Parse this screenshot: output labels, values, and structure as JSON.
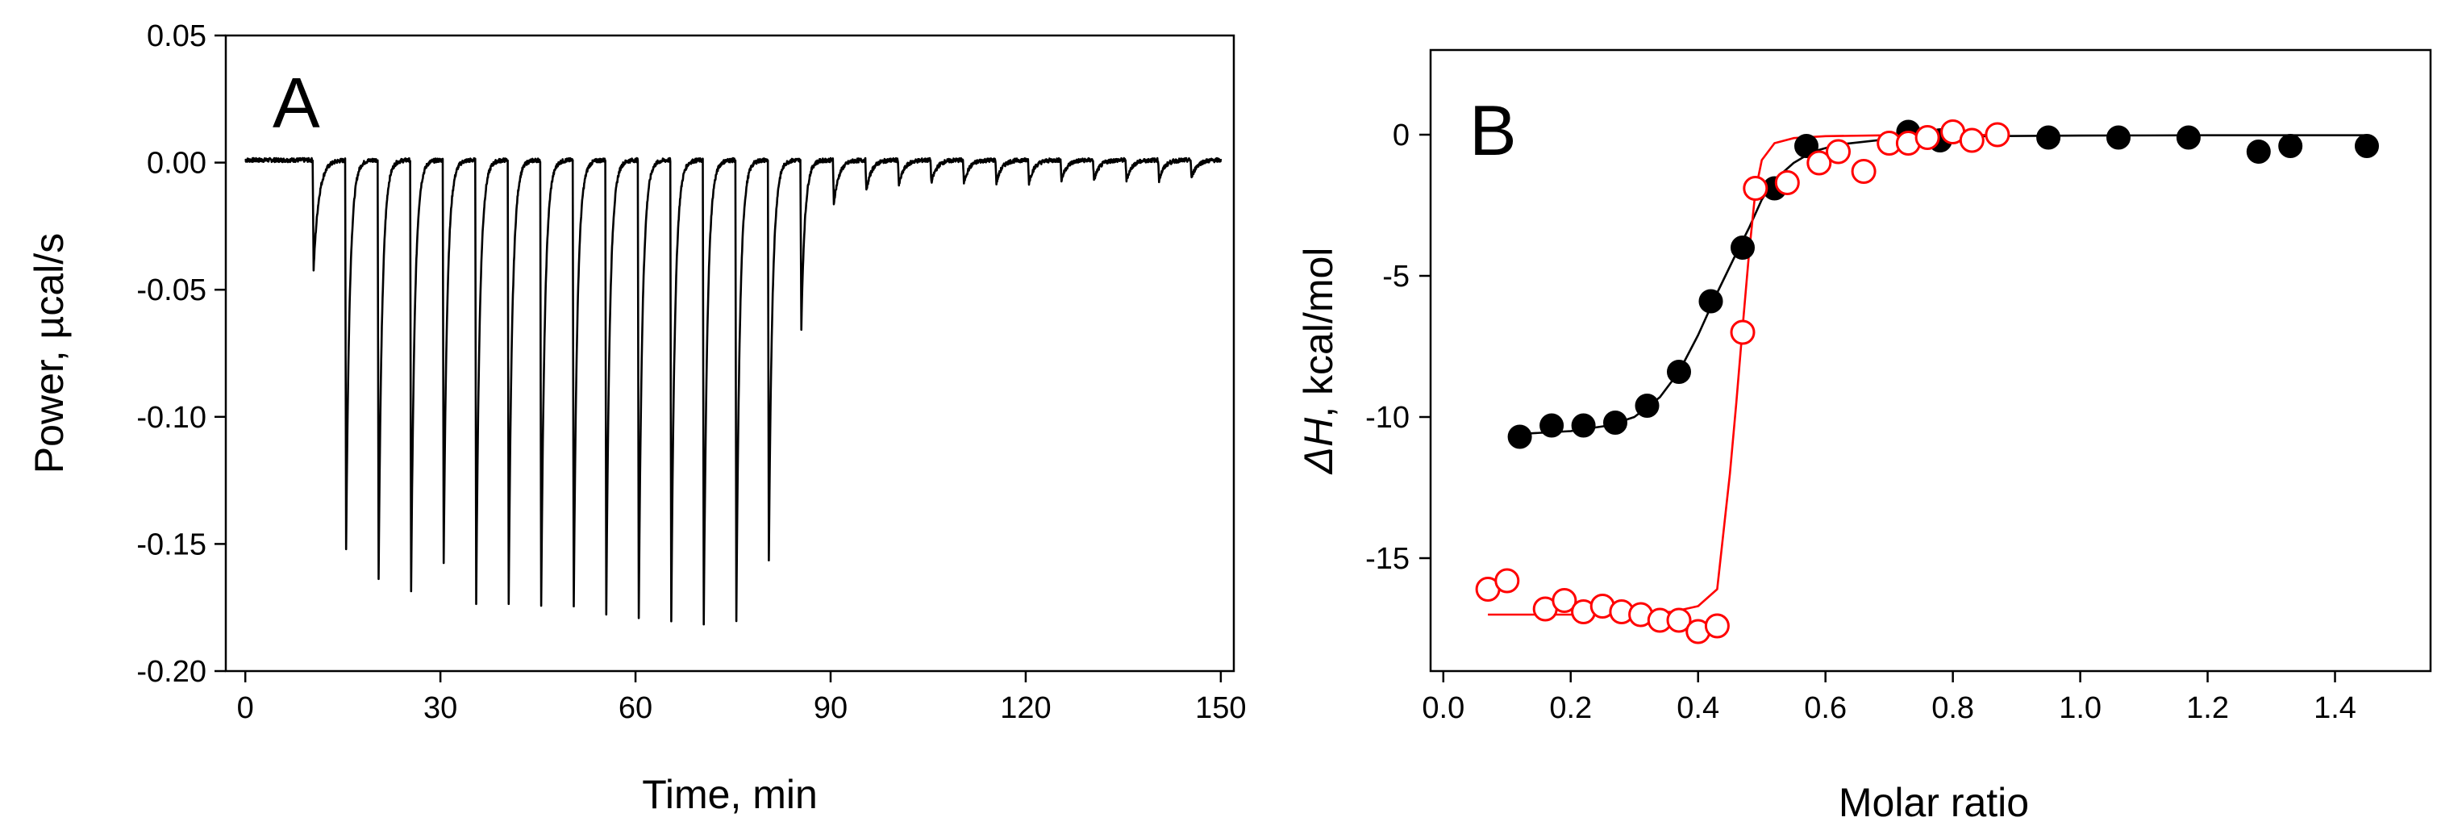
{
  "chart_data": [
    {
      "type": "line",
      "panel_label": "A",
      "title": "",
      "xlabel": "Time, min",
      "ylabel": "Power, µcal/s",
      "xlim": [
        -3,
        152
      ],
      "ylim": [
        -0.2,
        0.05
      ],
      "xticks": [
        0,
        30,
        60,
        90,
        120,
        150
      ],
      "xtick_labels": [
        "0",
        "30",
        "60",
        "90",
        "120",
        "150"
      ],
      "yticks": [
        0.05,
        0.0,
        -0.05,
        -0.1,
        -0.15,
        -0.2
      ],
      "ytick_labels": [
        "0.05",
        "0.00",
        "-0.05",
        "-0.10",
        "-0.15",
        "-0.20"
      ],
      "grid": false,
      "series": [
        {
          "name": "ITC raw heat",
          "color": "#000000",
          "baseline": 0.001,
          "injections": [
            {
              "time": 10.5,
              "min_power": -0.042
            },
            {
              "time": 15.5,
              "min_power": -0.152
            },
            {
              "time": 20.5,
              "min_power": -0.163
            },
            {
              "time": 25.5,
              "min_power": -0.169
            },
            {
              "time": 30.5,
              "min_power": -0.157
            },
            {
              "time": 35.5,
              "min_power": -0.173
            },
            {
              "time": 40.5,
              "min_power": -0.173
            },
            {
              "time": 45.5,
              "min_power": -0.175
            },
            {
              "time": 50.5,
              "min_power": -0.174
            },
            {
              "time": 55.5,
              "min_power": -0.177
            },
            {
              "time": 60.5,
              "min_power": -0.179
            },
            {
              "time": 65.5,
              "min_power": -0.181
            },
            {
              "time": 70.5,
              "min_power": -0.181
            },
            {
              "time": 75.5,
              "min_power": -0.18
            },
            {
              "time": 80.5,
              "min_power": -0.157
            },
            {
              "time": 85.5,
              "min_power": -0.065
            },
            {
              "time": 90.5,
              "min_power": -0.016
            },
            {
              "time": 95.5,
              "min_power": -0.011
            },
            {
              "time": 100.5,
              "min_power": -0.009
            },
            {
              "time": 105.5,
              "min_power": -0.008
            },
            {
              "time": 110.5,
              "min_power": -0.008
            },
            {
              "time": 115.5,
              "min_power": -0.008
            },
            {
              "time": 120.5,
              "min_power": -0.008
            },
            {
              "time": 125.5,
              "min_power": -0.007
            },
            {
              "time": 130.5,
              "min_power": -0.007
            },
            {
              "time": 135.5,
              "min_power": -0.007
            },
            {
              "time": 140.5,
              "min_power": -0.007
            },
            {
              "time": 145.5,
              "min_power": -0.006
            }
          ],
          "time_range": [
            0,
            150
          ]
        }
      ]
    },
    {
      "type": "scatter",
      "panel_label": "B",
      "title": "",
      "xlabel": "Molar ratio",
      "ylabel_italic": "ΔH",
      "ylabel_rest": ", kcal/mol",
      "xlim": [
        0.0,
        1.5
      ],
      "ylim": [
        -19,
        3
      ],
      "xticks": [
        0.0,
        0.2,
        0.4,
        0.6,
        0.8,
        1.0,
        1.2,
        1.4
      ],
      "xtick_labels": [
        "0.0",
        "0.2",
        "0.4",
        "0.6",
        "0.8",
        "1.0",
        "1.2",
        "1.4"
      ],
      "yticks": [
        0,
        -5,
        -10,
        -15
      ],
      "ytick_labels": [
        "0",
        "-5",
        "-10",
        "-15"
      ],
      "grid": false,
      "series": [
        {
          "name": "filled circles",
          "marker": "filled-circle",
          "color": "#000000",
          "x": [
            0.12,
            0.17,
            0.22,
            0.27,
            0.32,
            0.37,
            0.42,
            0.47,
            0.52,
            0.57,
            0.73,
            0.78,
            0.95,
            1.06,
            1.17,
            1.28,
            1.33,
            1.45
          ],
          "y": [
            -10.7,
            -10.3,
            -10.3,
            -10.2,
            -9.6,
            -8.4,
            -5.9,
            -4.0,
            -1.9,
            -0.4,
            0.1,
            -0.2,
            -0.1,
            -0.1,
            -0.1,
            -0.6,
            -0.4,
            -0.4
          ]
        },
        {
          "name": "open circles",
          "marker": "open-circle",
          "color": "#ff0000",
          "x": [
            0.07,
            0.1,
            0.16,
            0.19,
            0.22,
            0.25,
            0.28,
            0.31,
            0.34,
            0.37,
            0.4,
            0.43,
            0.47,
            0.49,
            0.54,
            0.59,
            0.62,
            0.66,
            0.7,
            0.73,
            0.76,
            0.8,
            0.83,
            0.87
          ],
          "y": [
            -16.1,
            -15.8,
            -16.8,
            -16.5,
            -16.9,
            -16.7,
            -16.9,
            -17.0,
            -17.2,
            -17.2,
            -17.6,
            -17.4,
            -7.0,
            -1.9,
            -1.7,
            -1.0,
            -0.6,
            -1.3,
            -0.3,
            -0.3,
            -0.1,
            0.1,
            -0.2,
            0.0
          ]
        },
        {
          "name": "fit black",
          "type": "line",
          "color": "#000000",
          "x": [
            0.12,
            0.2,
            0.26,
            0.3,
            0.34,
            0.37,
            0.4,
            0.43,
            0.46,
            0.48,
            0.5,
            0.52,
            0.55,
            0.58,
            0.62,
            0.7,
            0.8,
            1.0,
            1.2,
            1.45
          ],
          "y": [
            -10.6,
            -10.5,
            -10.3,
            -10.0,
            -9.3,
            -8.4,
            -7.1,
            -5.6,
            -4.2,
            -3.3,
            -2.3,
            -1.6,
            -1.0,
            -0.6,
            -0.35,
            -0.15,
            -0.06,
            -0.03,
            -0.02,
            -0.02
          ]
        },
        {
          "name": "fit red",
          "type": "line",
          "color": "#ff0000",
          "x": [
            0.07,
            0.2,
            0.3,
            0.36,
            0.4,
            0.43,
            0.45,
            0.46,
            0.47,
            0.48,
            0.49,
            0.5,
            0.52,
            0.55,
            0.6,
            0.7,
            0.87
          ],
          "y": [
            -17.0,
            -17.0,
            -16.95,
            -16.9,
            -16.7,
            -16.1,
            -12.0,
            -9.5,
            -6.8,
            -4.2,
            -2.0,
            -0.9,
            -0.3,
            -0.12,
            -0.05,
            -0.02,
            -0.01
          ]
        }
      ]
    }
  ]
}
